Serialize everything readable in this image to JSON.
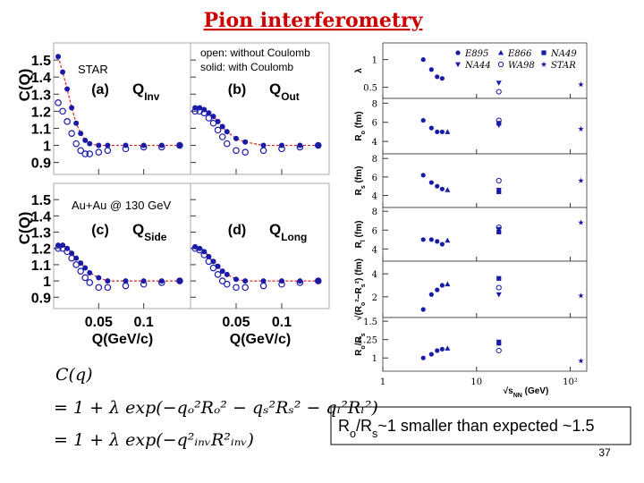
{
  "title": "Pion interferometry",
  "left": {
    "y_label": "C(Q)",
    "x_label": "Q(GeV/c)",
    "xlim": [
      0,
      0.152
    ],
    "ylim": [
      0.83,
      1.6
    ],
    "yticks": [
      0.9,
      1,
      1.1,
      1.2,
      1.3,
      1.4,
      1.5
    ],
    "xticks": [
      0.05,
      0.1
    ],
    "annotations": [
      "STAR",
      "Au+Au @ 130 GeV",
      "open: without Coulomb",
      "solid: with Coulomb"
    ],
    "q": [
      0.005,
      0.01,
      0.015,
      0.02,
      0.025,
      0.03,
      0.035,
      0.04,
      0.05,
      0.06,
      0.08,
      0.1,
      0.12,
      0.14
    ],
    "fill_color": "#1a1aa8",
    "fit_color": "#d02020",
    "panels": [
      {
        "tag": "(a)",
        "q_label": [
          "Q",
          "Inv"
        ],
        "filled": [
          1.52,
          1.43,
          1.33,
          1.22,
          1.13,
          1.07,
          1.03,
          1.01,
          1.0,
          1.0,
          1.0,
          1.0,
          1.0,
          1.0
        ],
        "open": [
          1.25,
          1.2,
          1.14,
          1.07,
          1.01,
          0.97,
          0.95,
          0.95,
          0.96,
          0.97,
          0.98,
          0.99,
          0.99,
          1.0
        ]
      },
      {
        "tag": "(b)",
        "q_label": [
          "Q",
          "Out"
        ],
        "filled": [
          1.22,
          1.22,
          1.21,
          1.19,
          1.17,
          1.14,
          1.11,
          1.08,
          1.04,
          1.02,
          1.0,
          1.0,
          1.0,
          1.0
        ],
        "open": [
          1.2,
          1.2,
          1.19,
          1.16,
          1.13,
          1.09,
          1.05,
          1.01,
          0.97,
          0.96,
          0.97,
          0.98,
          0.99,
          1.0
        ]
      },
      {
        "tag": "(c)",
        "q_label": [
          "Q",
          "Side"
        ],
        "filled": [
          1.22,
          1.22,
          1.2,
          1.17,
          1.14,
          1.11,
          1.08,
          1.05,
          1.02,
          1.0,
          1.0,
          1.0,
          1.0,
          1.0
        ],
        "open": [
          1.2,
          1.2,
          1.18,
          1.14,
          1.1,
          1.06,
          1.02,
          0.99,
          0.96,
          0.96,
          0.97,
          0.98,
          0.99,
          1.0
        ]
      },
      {
        "tag": "(d)",
        "q_label": [
          "Q",
          "Long"
        ],
        "filled": [
          1.21,
          1.2,
          1.18,
          1.15,
          1.12,
          1.09,
          1.06,
          1.04,
          1.01,
          1.0,
          1.0,
          1.0,
          1.0,
          1.0
        ],
        "open": [
          1.2,
          1.19,
          1.16,
          1.12,
          1.08,
          1.04,
          1.0,
          0.98,
          0.96,
          0.96,
          0.97,
          0.98,
          0.99,
          1.0
        ]
      }
    ]
  },
  "right": {
    "x_label": [
      "√s",
      "NN",
      " (GeV)"
    ],
    "xlim": [
      1,
      150
    ],
    "log_x": true,
    "xticks": [
      1,
      10,
      {
        "value": 100,
        "label": "10²"
      }
    ],
    "color": "#1a1aa8",
    "experiments": [
      {
        "name": "E895",
        "marker": "circle",
        "x": [
          2.7,
          3.3,
          3.8,
          4.3
        ]
      },
      {
        "name": "E866",
        "marker": "triangle",
        "x": [
          4.9
        ]
      },
      {
        "name": "NA49",
        "marker": "square",
        "x": [
          17.3
        ]
      },
      {
        "name": "NA44",
        "marker": "triangle-down",
        "x": [
          17.3
        ]
      },
      {
        "name": "WA98",
        "marker": "open-circle",
        "x": [
          17.3
        ]
      },
      {
        "name": "STAR",
        "marker": "star",
        "x": [
          130
        ]
      }
    ],
    "panels": [
      {
        "label": [
          "λ"
        ],
        "ylim": [
          0.3,
          1.3
        ],
        "yticks": [
          0.5,
          1
        ],
        "values": [
          [
            1.0,
            0.82,
            0.69,
            0.66
          ],
          [
            null
          ],
          [
            null
          ],
          [
            0.58
          ],
          [
            0.42
          ],
          [
            0.55
          ]
        ]
      },
      {
        "label": [
          "R",
          "o",
          " (fm)"
        ],
        "ylim": [
          2.7,
          8.5
        ],
        "yticks": [
          4,
          6,
          8
        ],
        "values": [
          [
            6.2,
            5.4,
            5.0,
            5.0
          ],
          [
            5.0
          ],
          [
            5.9
          ],
          [
            5.7
          ],
          [
            6.2
          ],
          [
            5.3
          ]
        ]
      },
      {
        "label": [
          "R",
          "s",
          " (fm)"
        ],
        "ylim": [
          2.7,
          8.5
        ],
        "yticks": [
          4,
          6,
          8
        ],
        "values": [
          [
            6.2,
            5.4,
            5.0,
            4.7
          ],
          [
            4.6
          ],
          [
            4.4
          ],
          [
            4.6
          ],
          [
            5.6
          ],
          [
            5.6
          ]
        ]
      },
      {
        "label": [
          "R",
          "l",
          " (fm)"
        ],
        "ylim": [
          2.7,
          8.4
        ],
        "yticks": [
          4,
          6,
          8
        ],
        "values": [
          [
            5.0,
            5.0,
            4.8,
            4.5
          ],
          [
            4.9
          ],
          [
            5.8
          ],
          [
            6.1
          ],
          [
            6.3
          ],
          [
            6.8
          ]
        ]
      },
      {
        "label": [
          "√(R",
          "o",
          "²−R",
          "s",
          "²) (fm)"
        ],
        "ylim": [
          0.2,
          5.1
        ],
        "yticks": [
          2,
          4
        ],
        "values": [
          [
            0.9,
            2.2,
            2.6,
            3.0
          ],
          [
            3.1
          ],
          [
            3.6
          ],
          [
            2.2
          ],
          [
            2.8
          ],
          [
            2.1
          ]
        ]
      },
      {
        "label": [
          "R",
          "o",
          "/R",
          "s"
        ],
        "ylim": [
          0.82,
          1.55
        ],
        "yticks": [
          1,
          {
            "value": 1.25,
            "label": "1.25"
          },
          1.5
        ],
        "values": [
          [
            1.0,
            1.05,
            1.1,
            1.12
          ],
          [
            1.13
          ],
          [
            1.2
          ],
          [
            1.22
          ],
          [
            1.1
          ],
          [
            0.96
          ]
        ]
      }
    ]
  },
  "formula": [
    "C(q)",
    "= 1 + λ exp(−qₒ²Rₒ² − qₛ²Rₛ² − qₗ²Rₗ²)",
    "= 1 + λ exp(−q²ᵢₙᵥR²ᵢₙᵥ)"
  ],
  "note": [
    "R",
    "o",
    "/R",
    "s",
    "~1 smaller than expected ~1.5"
  ],
  "page_number": "37"
}
